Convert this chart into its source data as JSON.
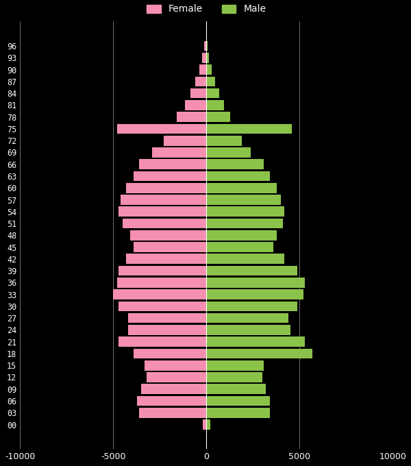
{
  "ages": [
    "00",
    "03",
    "06",
    "09",
    "12",
    "15",
    "18",
    "21",
    "24",
    "27",
    "30",
    "33",
    "36",
    "39",
    "42",
    "45",
    "48",
    "51",
    "54",
    "57",
    "60",
    "63",
    "66",
    "69",
    "72",
    "75",
    "78",
    "81",
    "84",
    "87",
    "90",
    "93",
    "96"
  ],
  "female": [
    200,
    3600,
    3700,
    3500,
    3200,
    3300,
    3900,
    4700,
    4200,
    4200,
    4700,
    5000,
    4800,
    4700,
    4300,
    3900,
    4100,
    4500,
    4700,
    4600,
    4300,
    3900,
    3600,
    2900,
    2300,
    4800,
    1600,
    1150,
    850,
    580,
    380,
    210,
    110
  ],
  "male": [
    200,
    3400,
    3400,
    3200,
    3000,
    3100,
    5700,
    5300,
    4500,
    4400,
    4900,
    5200,
    5300,
    4900,
    4200,
    3600,
    3800,
    4100,
    4200,
    4000,
    3800,
    3400,
    3100,
    2400,
    1900,
    4600,
    1300,
    950,
    700,
    470,
    300,
    160,
    80
  ],
  "female_color": "#f48fb1",
  "male_color": "#8bc34a",
  "bg_color": "#000000",
  "text_color": "#ffffff",
  "grid_color": "#ffffff",
  "xlim": [
    -10000,
    10000
  ],
  "xticks": [
    -10000,
    -5000,
    0,
    5000,
    10000
  ],
  "xtick_labels": [
    "-10000",
    "-5000",
    "0",
    "5000",
    "10000"
  ],
  "legend_female": "Female",
  "legend_male": "Male"
}
